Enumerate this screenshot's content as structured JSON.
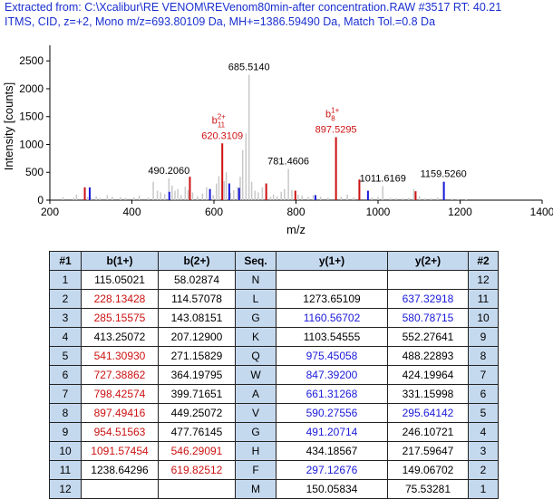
{
  "header": {
    "line1": "Extracted from: C:\\Xcalibur\\RE VENOM\\REVenom80min-after concentration.RAW   #3517   RT: 40.21",
    "line2": "ITMS, CID, z=+2, Mono m/z=693.80109 Da, MH+=1386.59490 Da, Match Tol.=0.8 Da"
  },
  "chart_data": {
    "type": "bar",
    "title": "",
    "xlabel": "m/z",
    "ylabel": "Intensity [counts]",
    "xlim": [
      200,
      1400
    ],
    "ylim": [
      0,
      2650
    ],
    "xticks": [
      200,
      400,
      600,
      800,
      1000,
      1200,
      1400
    ],
    "yticks": [
      0,
      500,
      1000,
      1500,
      2000,
      2500
    ],
    "colors": {
      "unmatched": "#c8c8c8",
      "b_ion": "#cc1111",
      "y_ion": "#1a1adb",
      "axis": "#000000",
      "label": "#000000"
    },
    "peaks_unmatched": [
      [
        232,
        55
      ],
      [
        258,
        40
      ],
      [
        265,
        100
      ],
      [
        292,
        60
      ],
      [
        300,
        45
      ],
      [
        313,
        70
      ],
      [
        322,
        40
      ],
      [
        340,
        90
      ],
      [
        352,
        60
      ],
      [
        372,
        55
      ],
      [
        385,
        40
      ],
      [
        405,
        50
      ],
      [
        418,
        80
      ],
      [
        440,
        45
      ],
      [
        452,
        330
      ],
      [
        462,
        170
      ],
      [
        470,
        140
      ],
      [
        480,
        110
      ],
      [
        490.206,
        390
      ],
      [
        498,
        260
      ],
      [
        505,
        170
      ],
      [
        512,
        200
      ],
      [
        520,
        90
      ],
      [
        530,
        240
      ],
      [
        537,
        180
      ],
      [
        548,
        140
      ],
      [
        560,
        70
      ],
      [
        572,
        120
      ],
      [
        582,
        230
      ],
      [
        590,
        110
      ],
      [
        598,
        90
      ],
      [
        606,
        300
      ],
      [
        612,
        430
      ],
      [
        625,
        340
      ],
      [
        630,
        500
      ],
      [
        640,
        130
      ],
      [
        648,
        180
      ],
      [
        658,
        230
      ],
      [
        664,
        420
      ],
      [
        670,
        900
      ],
      [
        678,
        1200
      ],
      [
        685.514,
        2250
      ],
      [
        692,
        330
      ],
      [
        700,
        170
      ],
      [
        708,
        140
      ],
      [
        718,
        230
      ],
      [
        728,
        140
      ],
      [
        738,
        60
      ],
      [
        745,
        100
      ],
      [
        754,
        70
      ],
      [
        764,
        150
      ],
      [
        772,
        200
      ],
      [
        781.4606,
        560
      ],
      [
        790,
        180
      ],
      [
        805,
        100
      ],
      [
        815,
        80
      ],
      [
        830,
        60
      ],
      [
        842,
        90
      ],
      [
        860,
        60
      ],
      [
        878,
        45
      ],
      [
        910,
        60
      ],
      [
        925,
        100
      ],
      [
        940,
        50
      ],
      [
        975,
        60
      ],
      [
        985,
        45
      ],
      [
        1000,
        60
      ],
      [
        1011.6169,
        250
      ],
      [
        1030,
        40
      ],
      [
        1045,
        35
      ],
      [
        1060,
        30
      ],
      [
        1075,
        40
      ],
      [
        1087,
        200
      ],
      [
        1101,
        70
      ],
      [
        1115,
        35
      ],
      [
        1130,
        30
      ],
      [
        1145,
        50
      ],
      [
        1159.526,
        330
      ],
      [
        1180,
        25
      ],
      [
        1195,
        20
      ],
      [
        1215,
        15
      ]
    ],
    "peaks_b": [
      [
        285.16,
        230
      ],
      [
        541.31,
        420
      ],
      [
        620.3109,
        1020
      ],
      [
        727.39,
        300
      ],
      [
        798.43,
        170
      ],
      [
        897.5295,
        1130
      ],
      [
        954.52,
        370
      ],
      [
        1091.57,
        160
      ]
    ],
    "peaks_y": [
      [
        297.13,
        230
      ],
      [
        491.21,
        150
      ],
      [
        590.28,
        200
      ],
      [
        637.33,
        300
      ],
      [
        661.31,
        220
      ],
      [
        847.39,
        90
      ],
      [
        975.46,
        170
      ],
      [
        1160.57,
        330
      ]
    ],
    "peak_labels": [
      {
        "text": "685.5140",
        "mz": 685.514,
        "intensity": 2250,
        "color": "#000000"
      },
      {
        "text": "490.2060",
        "mz": 490.206,
        "intensity": 390,
        "color": "#000000"
      },
      {
        "text": "781.4606",
        "mz": 781.4606,
        "intensity": 560,
        "color": "#000000"
      },
      {
        "text": "1011.6169",
        "mz": 1011.6169,
        "intensity": 250,
        "color": "#000000"
      },
      {
        "text": "1159.5260",
        "mz": 1159.526,
        "intensity": 330,
        "color": "#000000"
      },
      {
        "text": "620.3109",
        "mz": 620.3109,
        "intensity": 1020,
        "color": "#cc1111",
        "ion": "b",
        "sub": "11",
        "sup": "2+"
      },
      {
        "text": "897.5295",
        "mz": 897.5295,
        "intensity": 1130,
        "color": "#cc1111",
        "ion": "b",
        "sub": "8",
        "sup": "1+"
      }
    ]
  },
  "table": {
    "headers": [
      "#1",
      "b(1+)",
      "b(2+)",
      "Seq.",
      "y(1+)",
      "y(2+)",
      "#2"
    ],
    "rows": [
      {
        "n1": "1",
        "b1": "115.05021",
        "b1c": "blk",
        "b2": "58.02874",
        "b2c": "blk",
        "seq": "N",
        "y1": "",
        "y1c": "blk",
        "y2": "",
        "y2c": "blk",
        "n2": "12"
      },
      {
        "n1": "2",
        "b1": "228.13428",
        "b1c": "red",
        "b2": "114.57078",
        "b2c": "blk",
        "seq": "L",
        "y1": "1273.65109",
        "y1c": "blk",
        "y2": "637.32918",
        "y2c": "blue",
        "n2": "11"
      },
      {
        "n1": "3",
        "b1": "285.15575",
        "b1c": "red",
        "b2": "143.08151",
        "b2c": "blk",
        "seq": "G",
        "y1": "1160.56702",
        "y1c": "blue",
        "y2": "580.78715",
        "y2c": "blue",
        "n2": "10"
      },
      {
        "n1": "4",
        "b1": "413.25072",
        "b1c": "blk",
        "b2": "207.12900",
        "b2c": "blk",
        "seq": "K",
        "y1": "1103.54555",
        "y1c": "blk",
        "y2": "552.27641",
        "y2c": "blk",
        "n2": "9"
      },
      {
        "n1": "5",
        "b1": "541.30930",
        "b1c": "red",
        "b2": "271.15829",
        "b2c": "blk",
        "seq": "Q",
        "y1": "975.45058",
        "y1c": "blue",
        "y2": "488.22893",
        "y2c": "blk",
        "n2": "8"
      },
      {
        "n1": "6",
        "b1": "727.38862",
        "b1c": "red",
        "b2": "364.19795",
        "b2c": "blk",
        "seq": "W",
        "y1": "847.39200",
        "y1c": "blue",
        "y2": "424.19964",
        "y2c": "blk",
        "n2": "7"
      },
      {
        "n1": "7",
        "b1": "798.42574",
        "b1c": "red",
        "b2": "399.71651",
        "b2c": "blk",
        "seq": "A",
        "y1": "661.31268",
        "y1c": "blue",
        "y2": "331.15998",
        "y2c": "blk",
        "n2": "6"
      },
      {
        "n1": "8",
        "b1": "897.49416",
        "b1c": "red",
        "b2": "449.25072",
        "b2c": "blk",
        "seq": "V",
        "y1": "590.27556",
        "y1c": "blue",
        "y2": "295.64142",
        "y2c": "blue",
        "n2": "5"
      },
      {
        "n1": "9",
        "b1": "954.51563",
        "b1c": "red",
        "b2": "477.76145",
        "b2c": "blk",
        "seq": "G",
        "y1": "491.20714",
        "y1c": "blue",
        "y2": "246.10721",
        "y2c": "blk",
        "n2": "4"
      },
      {
        "n1": "10",
        "b1": "1091.57454",
        "b1c": "red",
        "b2": "546.29091",
        "b2c": "red",
        "seq": "H",
        "y1": "434.18567",
        "y1c": "blk",
        "y2": "217.59647",
        "y2c": "blk",
        "n2": "3"
      },
      {
        "n1": "11",
        "b1": "1238.64296",
        "b1c": "blk",
        "b2": "619.82512",
        "b2c": "red",
        "seq": "F",
        "y1": "297.12676",
        "y1c": "blue",
        "y2": "149.06702",
        "y2c": "blk",
        "n2": "2"
      },
      {
        "n1": "12",
        "b1": "",
        "b1c": "blk",
        "b2": "",
        "b2c": "blk",
        "seq": "M",
        "y1": "150.05834",
        "y1c": "blk",
        "y2": "75.53281",
        "y2c": "blk",
        "n2": "1"
      }
    ]
  }
}
